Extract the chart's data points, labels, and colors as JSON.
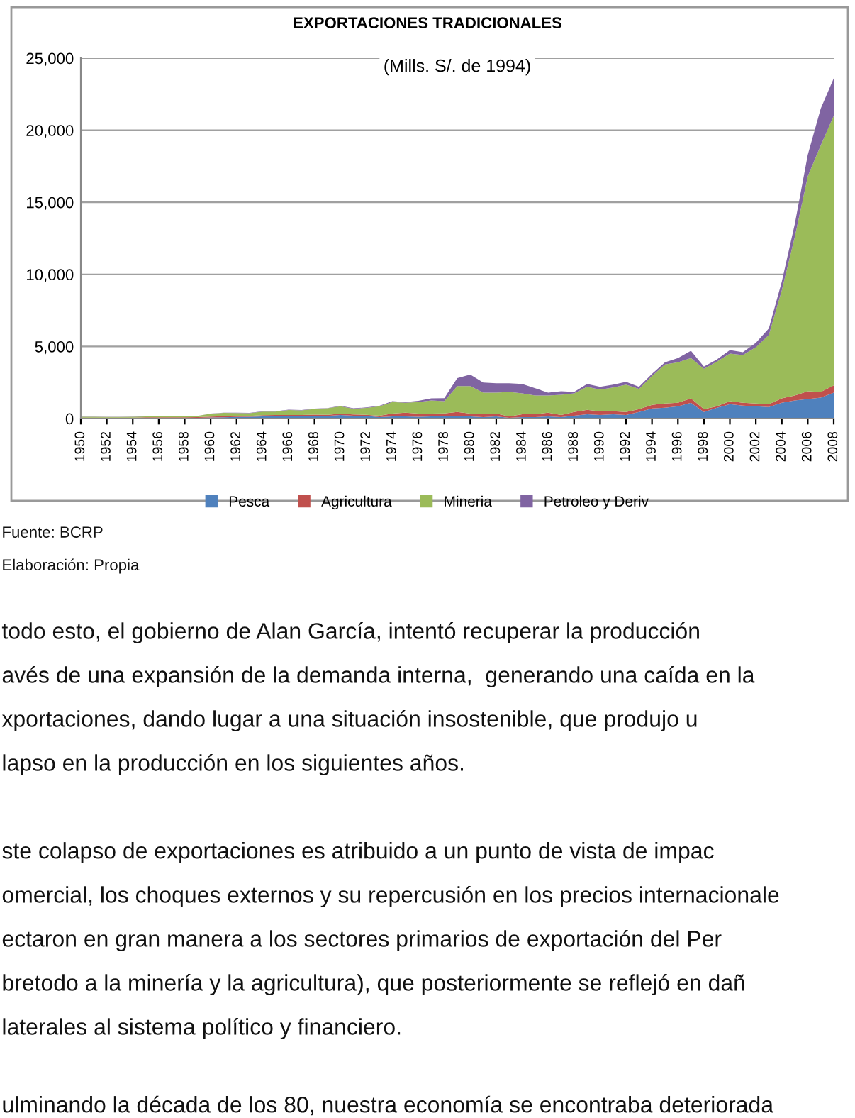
{
  "chart_data": {
    "type": "area",
    "stacked": true,
    "title": "EXPORTACIONES TRADICIONALES",
    "subtitle": "(Mills. S/. de 1994)",
    "x": [
      1950,
      1951,
      1952,
      1953,
      1954,
      1955,
      1956,
      1957,
      1958,
      1959,
      1960,
      1961,
      1962,
      1963,
      1964,
      1965,
      1966,
      1967,
      1968,
      1969,
      1970,
      1971,
      1972,
      1973,
      1974,
      1975,
      1976,
      1977,
      1978,
      1979,
      1980,
      1981,
      1982,
      1983,
      1984,
      1985,
      1986,
      1987,
      1988,
      1989,
      1990,
      1991,
      1992,
      1993,
      1994,
      1995,
      1996,
      1997,
      1998,
      1999,
      2000,
      2001,
      2002,
      2003,
      2004,
      2005,
      2006,
      2007,
      2008
    ],
    "series": [
      {
        "name": "Pesca",
        "color": "#4f81bd",
        "values": [
          20,
          20,
          20,
          20,
          20,
          30,
          30,
          40,
          40,
          50,
          70,
          90,
          110,
          120,
          150,
          160,
          170,
          170,
          190,
          180,
          250,
          200,
          180,
          100,
          150,
          150,
          120,
          150,
          160,
          150,
          150,
          100,
          150,
          50,
          100,
          100,
          150,
          100,
          200,
          300,
          250,
          300,
          250,
          450,
          700,
          750,
          850,
          1100,
          450,
          750,
          1000,
          900,
          850,
          800,
          1100,
          1250,
          1350,
          1450,
          1800
        ]
      },
      {
        "name": "Agricultura",
        "color": "#c0504d",
        "values": [
          40,
          40,
          40,
          40,
          40,
          50,
          50,
          50,
          50,
          50,
          60,
          70,
          70,
          70,
          80,
          80,
          80,
          80,
          80,
          80,
          80,
          80,
          80,
          100,
          200,
          250,
          230,
          200,
          200,
          300,
          200,
          200,
          200,
          100,
          200,
          200,
          250,
          150,
          250,
          300,
          250,
          200,
          200,
          200,
          250,
          300,
          250,
          300,
          200,
          100,
          200,
          200,
          200,
          200,
          300,
          350,
          550,
          400,
          500
        ]
      },
      {
        "name": "Mineria",
        "color": "#9bbb59",
        "values": [
          60,
          60,
          50,
          50,
          60,
          70,
          80,
          80,
          70,
          80,
          200,
          230,
          200,
          180,
          250,
          240,
          340,
          320,
          400,
          450,
          520,
          400,
          480,
          650,
          800,
          700,
          800,
          900,
          850,
          1800,
          1900,
          1500,
          1450,
          1700,
          1450,
          1300,
          1200,
          1400,
          1300,
          1600,
          1500,
          1650,
          1900,
          1400,
          2000,
          2700,
          2800,
          2800,
          2800,
          3100,
          3300,
          3300,
          3900,
          4800,
          7500,
          11000,
          14900,
          17100,
          18700
        ]
      },
      {
        "name": "Petroleo y Deriv",
        "color": "#8064a2",
        "values": [
          10,
          10,
          10,
          10,
          10,
          10,
          10,
          10,
          10,
          10,
          20,
          20,
          20,
          20,
          20,
          20,
          20,
          20,
          20,
          20,
          30,
          30,
          30,
          40,
          50,
          50,
          80,
          150,
          200,
          550,
          800,
          700,
          650,
          600,
          650,
          500,
          200,
          250,
          100,
          200,
          200,
          200,
          200,
          150,
          150,
          150,
          300,
          500,
          150,
          150,
          250,
          200,
          300,
          450,
          600,
          900,
          1500,
          2550,
          2600
        ]
      }
    ],
    "xlim": [
      1950,
      2008
    ],
    "xticks": [
      1950,
      1952,
      1954,
      1956,
      1958,
      1960,
      1962,
      1964,
      1966,
      1968,
      1970,
      1972,
      1974,
      1976,
      1978,
      1980,
      1982,
      1984,
      1986,
      1988,
      1990,
      1992,
      1994,
      1996,
      1998,
      2000,
      2002,
      2004,
      2006,
      2008
    ],
    "ylim": [
      0,
      25000
    ],
    "yticks": [
      {
        "value": 0,
        "label": "0"
      },
      {
        "value": 5000,
        "label": "5,000"
      },
      {
        "value": 10000,
        "label": "10,000"
      },
      {
        "value": 15000,
        "label": "15,000"
      },
      {
        "value": 20000,
        "label": "20,000"
      },
      {
        "value": 25000,
        "label": "25,000"
      }
    ],
    "grid": "y",
    "legend": "bottom",
    "annotations": [
      "Fuente: BCRP",
      "Elaboración: Propia",
      "todo esto, el gobierno de Alan García, intentó recuperar la producción",
      "avés de una expansión de la demanda interna,  generando una caída en la",
      "xportaciones, dando lugar a una situación insostenible, que produjo u",
      "lapso en la producción en los siguientes años.",
      "ste colapso de exportaciones es atribuido a un punto de vista de impac",
      "omercial, los choques externos y su repercusión en los precios internacionale",
      "ectaron en gran manera a los sectores primarios de exportación del Per",
      "bretodo a la minería y la agricultura), que posteriormente se reflejó en dañ",
      "laterales al sistema político y financiero.",
      "ulminando la década de los 80, nuestra economía se encontraba deteriorada"
    ]
  }
}
